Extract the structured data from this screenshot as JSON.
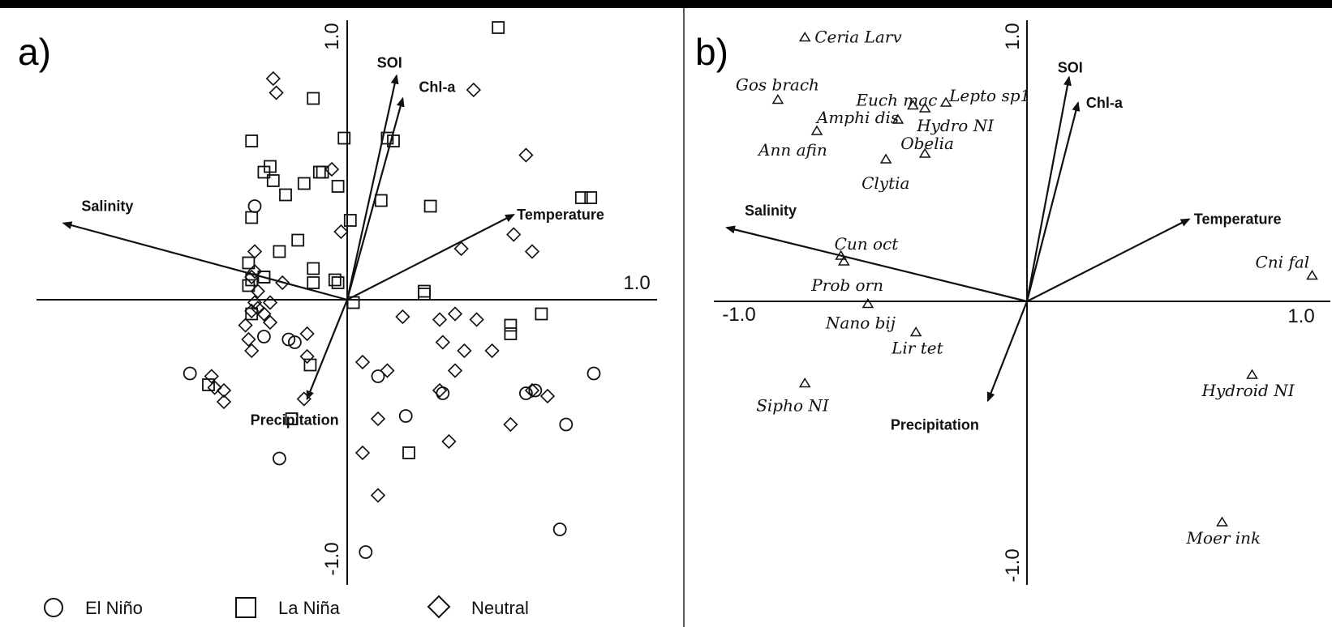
{
  "chart_data": [
    {
      "type": "scatter",
      "panel_label": "a)",
      "xlim": [
        -1.0,
        1.0
      ],
      "ylim": [
        -1.0,
        1.0
      ],
      "tick_labels": [
        "1.0",
        "1.0",
        "-1.0"
      ],
      "vectors": [
        {
          "name": "SOI",
          "x": 0.16,
          "y": 0.79
        },
        {
          "name": "Chl-a",
          "x": 0.18,
          "y": 0.71
        },
        {
          "name": "Salinity",
          "x": -0.92,
          "y": 0.27
        },
        {
          "name": "Temperature",
          "x": 0.54,
          "y": 0.3
        },
        {
          "name": "Precipitation",
          "x": -0.13,
          "y": -0.35
        }
      ],
      "series": [
        {
          "name": "El Niño",
          "marker": "circle",
          "points": [
            [
              -0.3,
              0.33
            ],
            [
              -0.27,
              -0.13
            ],
            [
              -0.19,
              -0.14
            ],
            [
              -0.17,
              -0.15
            ],
            [
              -0.51,
              -0.26
            ],
            [
              -0.22,
              -0.56
            ],
            [
              0.1,
              -0.27
            ],
            [
              0.19,
              -0.41
            ],
            [
              0.31,
              -0.33
            ],
            [
              0.58,
              -0.33
            ],
            [
              0.8,
              -0.26
            ],
            [
              0.71,
              -0.44
            ],
            [
              0.69,
              -0.81
            ],
            [
              0.06,
              -0.89
            ],
            [
              0.61,
              -0.32
            ]
          ]
        },
        {
          "name": "La Niña",
          "marker": "square",
          "points": [
            [
              0.49,
              0.96
            ],
            [
              -0.11,
              0.71
            ],
            [
              -0.31,
              0.56
            ],
            [
              -0.01,
              0.57
            ],
            [
              0.13,
              0.57
            ],
            [
              0.15,
              0.56
            ],
            [
              -0.27,
              0.45
            ],
            [
              -0.25,
              0.47
            ],
            [
              -0.24,
              0.42
            ],
            [
              -0.14,
              0.41
            ],
            [
              -0.09,
              0.45
            ],
            [
              -0.08,
              0.45
            ],
            [
              -0.03,
              0.4
            ],
            [
              -0.2,
              0.37
            ],
            [
              0.11,
              0.35
            ],
            [
              0.27,
              0.33
            ],
            [
              0.76,
              0.36
            ],
            [
              0.79,
              0.36
            ],
            [
              -0.31,
              0.29
            ],
            [
              0.01,
              0.28
            ],
            [
              -0.16,
              0.21
            ],
            [
              -0.22,
              0.17
            ],
            [
              -0.32,
              0.13
            ],
            [
              -0.27,
              0.08
            ],
            [
              -0.11,
              0.11
            ],
            [
              -0.27,
              0.08
            ],
            [
              -0.31,
              0.07
            ],
            [
              -0.32,
              0.05
            ],
            [
              -0.11,
              0.06
            ],
            [
              -0.04,
              0.07
            ],
            [
              -0.03,
              0.06
            ],
            [
              0.25,
              0.03
            ],
            [
              0.02,
              -0.01
            ],
            [
              0.25,
              0.02
            ],
            [
              0.63,
              -0.05
            ],
            [
              0.53,
              -0.09
            ],
            [
              0.53,
              -0.12
            ],
            [
              -0.12,
              -0.23
            ],
            [
              -0.45,
              -0.3
            ],
            [
              -0.18,
              -0.42
            ],
            [
              0.2,
              -0.54
            ],
            [
              -0.31,
              -0.05
            ]
          ]
        },
        {
          "name": "Neutral",
          "marker": "diamond",
          "points": [
            [
              -0.24,
              0.78
            ],
            [
              -0.23,
              0.73
            ],
            [
              0.41,
              0.74
            ],
            [
              0.58,
              0.51
            ],
            [
              -0.05,
              0.46
            ],
            [
              -0.02,
              0.24
            ],
            [
              0.37,
              0.18
            ],
            [
              0.54,
              0.23
            ],
            [
              0.6,
              0.17
            ],
            [
              -0.3,
              0.17
            ],
            [
              -0.31,
              0.08
            ],
            [
              -0.21,
              0.06
            ],
            [
              -0.29,
              0.03
            ],
            [
              -0.25,
              -0.01
            ],
            [
              -0.33,
              -0.09
            ],
            [
              -0.32,
              -0.14
            ],
            [
              -0.31,
              -0.18
            ],
            [
              -0.3,
              -0.01
            ],
            [
              -0.29,
              -0.03
            ],
            [
              -0.31,
              -0.04
            ],
            [
              -0.27,
              -0.05
            ],
            [
              -0.25,
              -0.08
            ],
            [
              -0.13,
              -0.12
            ],
            [
              -0.13,
              -0.2
            ],
            [
              0.18,
              -0.06
            ],
            [
              0.3,
              -0.07
            ],
            [
              0.35,
              -0.05
            ],
            [
              0.42,
              -0.07
            ],
            [
              0.31,
              -0.15
            ],
            [
              0.38,
              -0.18
            ],
            [
              0.47,
              -0.18
            ],
            [
              0.35,
              -0.25
            ],
            [
              0.3,
              -0.32
            ],
            [
              0.05,
              -0.22
            ],
            [
              0.13,
              -0.25
            ],
            [
              -0.14,
              -0.35
            ],
            [
              -0.44,
              -0.27
            ],
            [
              -0.43,
              -0.31
            ],
            [
              -0.4,
              -0.36
            ],
            [
              -0.4,
              -0.32
            ],
            [
              0.1,
              -0.42
            ],
            [
              0.05,
              -0.54
            ],
            [
              0.33,
              -0.5
            ],
            [
              0.53,
              -0.44
            ],
            [
              0.6,
              -0.32
            ],
            [
              0.65,
              -0.34
            ],
            [
              0.1,
              -0.69
            ],
            [
              -0.3,
              0.1
            ]
          ]
        }
      ],
      "legend": [
        "El Niño",
        "La Niña",
        "Neutral"
      ],
      "legend_position": "bottom"
    },
    {
      "type": "scatter",
      "panel_label": "b)",
      "xlim": [
        -1.0,
        1.0
      ],
      "ylim": [
        -1.0,
        1.0
      ],
      "tick_labels": [
        "1.0",
        "-1.0",
        "1.0",
        "-1.0"
      ],
      "vectors": [
        {
          "name": "SOI",
          "x": 0.14,
          "y": 0.79
        },
        {
          "name": "Chl-a",
          "x": 0.17,
          "y": 0.7
        },
        {
          "name": "Salinity",
          "x": -1.0,
          "y": 0.26
        },
        {
          "name": "Temperature",
          "x": 0.54,
          "y": 0.29
        },
        {
          "name": "Precipitation",
          "x": -0.13,
          "y": -0.35
        }
      ],
      "species": [
        {
          "name": "Ceria Larv",
          "x": -0.74,
          "y": 0.93
        },
        {
          "name": "Gos brach",
          "x": -0.83,
          "y": 0.71
        },
        {
          "name": "Euch mac",
          "x": -0.38,
          "y": 0.69
        },
        {
          "name": "Lepto sp1",
          "x": -0.27,
          "y": 0.7
        },
        {
          "name": "Amphi dis",
          "x": -0.43,
          "y": 0.64
        },
        {
          "name": "Hydro NI",
          "x": -0.34,
          "y": 0.68
        },
        {
          "name": "Ann afin",
          "x": -0.7,
          "y": 0.6
        },
        {
          "name": "Obelia",
          "x": -0.34,
          "y": 0.52
        },
        {
          "name": "Clytia",
          "x": -0.47,
          "y": 0.5
        },
        {
          "name": "Cun oct",
          "x": -0.62,
          "y": 0.16
        },
        {
          "name": "Prob orn",
          "x": -0.61,
          "y": 0.14
        },
        {
          "name": "Nano bij",
          "x": -0.53,
          "y": -0.01
        },
        {
          "name": "Lir tet",
          "x": -0.37,
          "y": -0.11
        },
        {
          "name": "Sipho NI",
          "x": -0.74,
          "y": -0.29
        },
        {
          "name": "Cni fal",
          "x": 0.95,
          "y": 0.09
        },
        {
          "name": "Hydroid NI",
          "x": 0.75,
          "y": -0.26
        },
        {
          "name": "Moer ink",
          "x": 0.65,
          "y": -0.78
        }
      ]
    }
  ],
  "colors": {
    "ink": "#111111",
    "background": "#ffffff",
    "frame": "#000000"
  }
}
